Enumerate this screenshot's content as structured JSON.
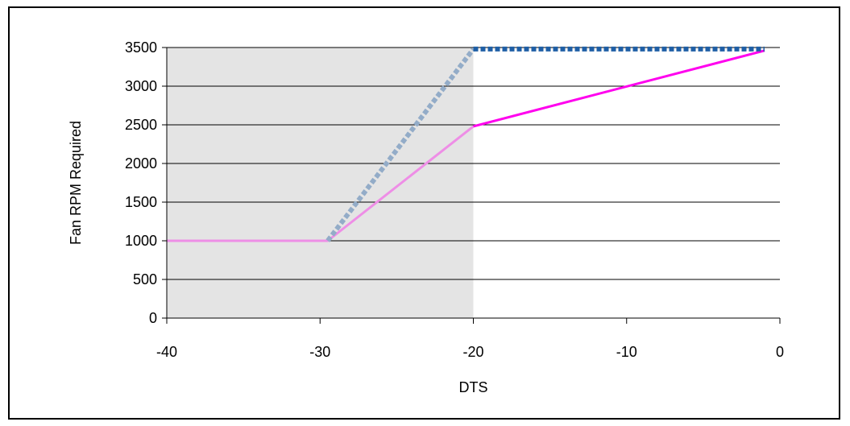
{
  "chart_data": {
    "type": "line",
    "title": "",
    "xlabel": "DTS",
    "ylabel": "Fan RPM Required",
    "xlim": [
      -40,
      0
    ],
    "ylim": [
      0,
      3500
    ],
    "x_ticks": [
      -40,
      -30,
      -20,
      -10,
      0
    ],
    "y_ticks": [
      0,
      500,
      1000,
      1500,
      2000,
      2500,
      3000,
      3500
    ],
    "x_tick_labels": [
      "-40",
      "-30",
      "-20",
      "-10",
      "0"
    ],
    "y_tick_labels": [
      "0",
      "500",
      "1000",
      "1500",
      "2000",
      "2500",
      "3000",
      "3500"
    ],
    "grid": "horizontal",
    "legend": "none",
    "shaded_region": {
      "x_from": -40,
      "x_to": -20,
      "color": "#e4e4e4"
    },
    "series": [
      {
        "style": "solid",
        "segments": [
          {
            "x": [
              -40,
              -29.5,
              -20
            ],
            "y": [
              1000,
              1000,
              2480
            ],
            "color": "#ee8ee6"
          },
          {
            "x": [
              -20,
              -1
            ],
            "y": [
              2480,
              3460
            ],
            "color": "#ff00ee"
          }
        ]
      },
      {
        "style": "dotted",
        "segments": [
          {
            "x": [
              -29.5,
              -20
            ],
            "y": [
              1000,
              3480
            ],
            "color": "#93acc8"
          },
          {
            "x": [
              -20,
              -1
            ],
            "y": [
              3480,
              3480
            ],
            "color": "#1f5fa6"
          }
        ]
      }
    ]
  }
}
